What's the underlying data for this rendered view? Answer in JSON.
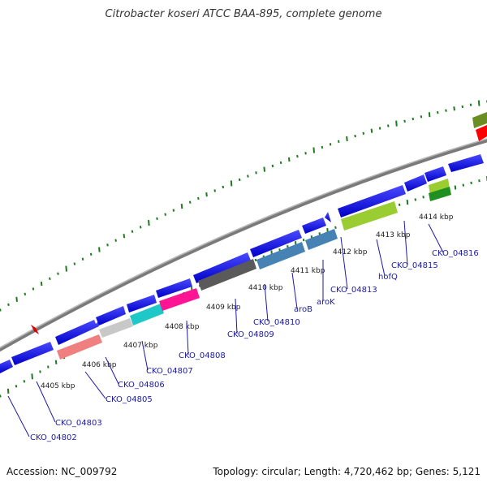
{
  "title": "Citrobacter koseri ATCC BAA-895, complete genome",
  "footer": {
    "accession": "Accession: NC_009792",
    "topology": "Topology: circular; Length: 4,720,462 bp; Genes: 5,121"
  },
  "kbp_labels": [
    "4405 kbp",
    "4406 kbp",
    "4407 kbp",
    "4408 kbp",
    "4409 kbp",
    "4410 kbp",
    "4411 kbp",
    "4412 kbp",
    "4413 kbp",
    "4414 kbp"
  ],
  "gene_labels": [
    "CKO_04802",
    "CKO_04803",
    "CKO_04805",
    "CKO_04806",
    "CKO_04807",
    "CKO_04808",
    "CKO_04809",
    "CKO_04810",
    "aroB",
    "aroK",
    "CKO_04813",
    "hofQ",
    "CKO_04815",
    "CKO_04816"
  ],
  "colors": {
    "cds": "#0000ee",
    "backbone": "#888888",
    "gc_skew": "#116611",
    "salmon": "#f08080",
    "silver": "#c8c8c8",
    "cyan": "#1ec8c8",
    "magenta": "#ff1493",
    "dim_gray": "#606060",
    "steel_blue": "#4682b4",
    "yellow_green": "#9acd32",
    "olive": "#6b8e23",
    "red": "#ff0000"
  }
}
